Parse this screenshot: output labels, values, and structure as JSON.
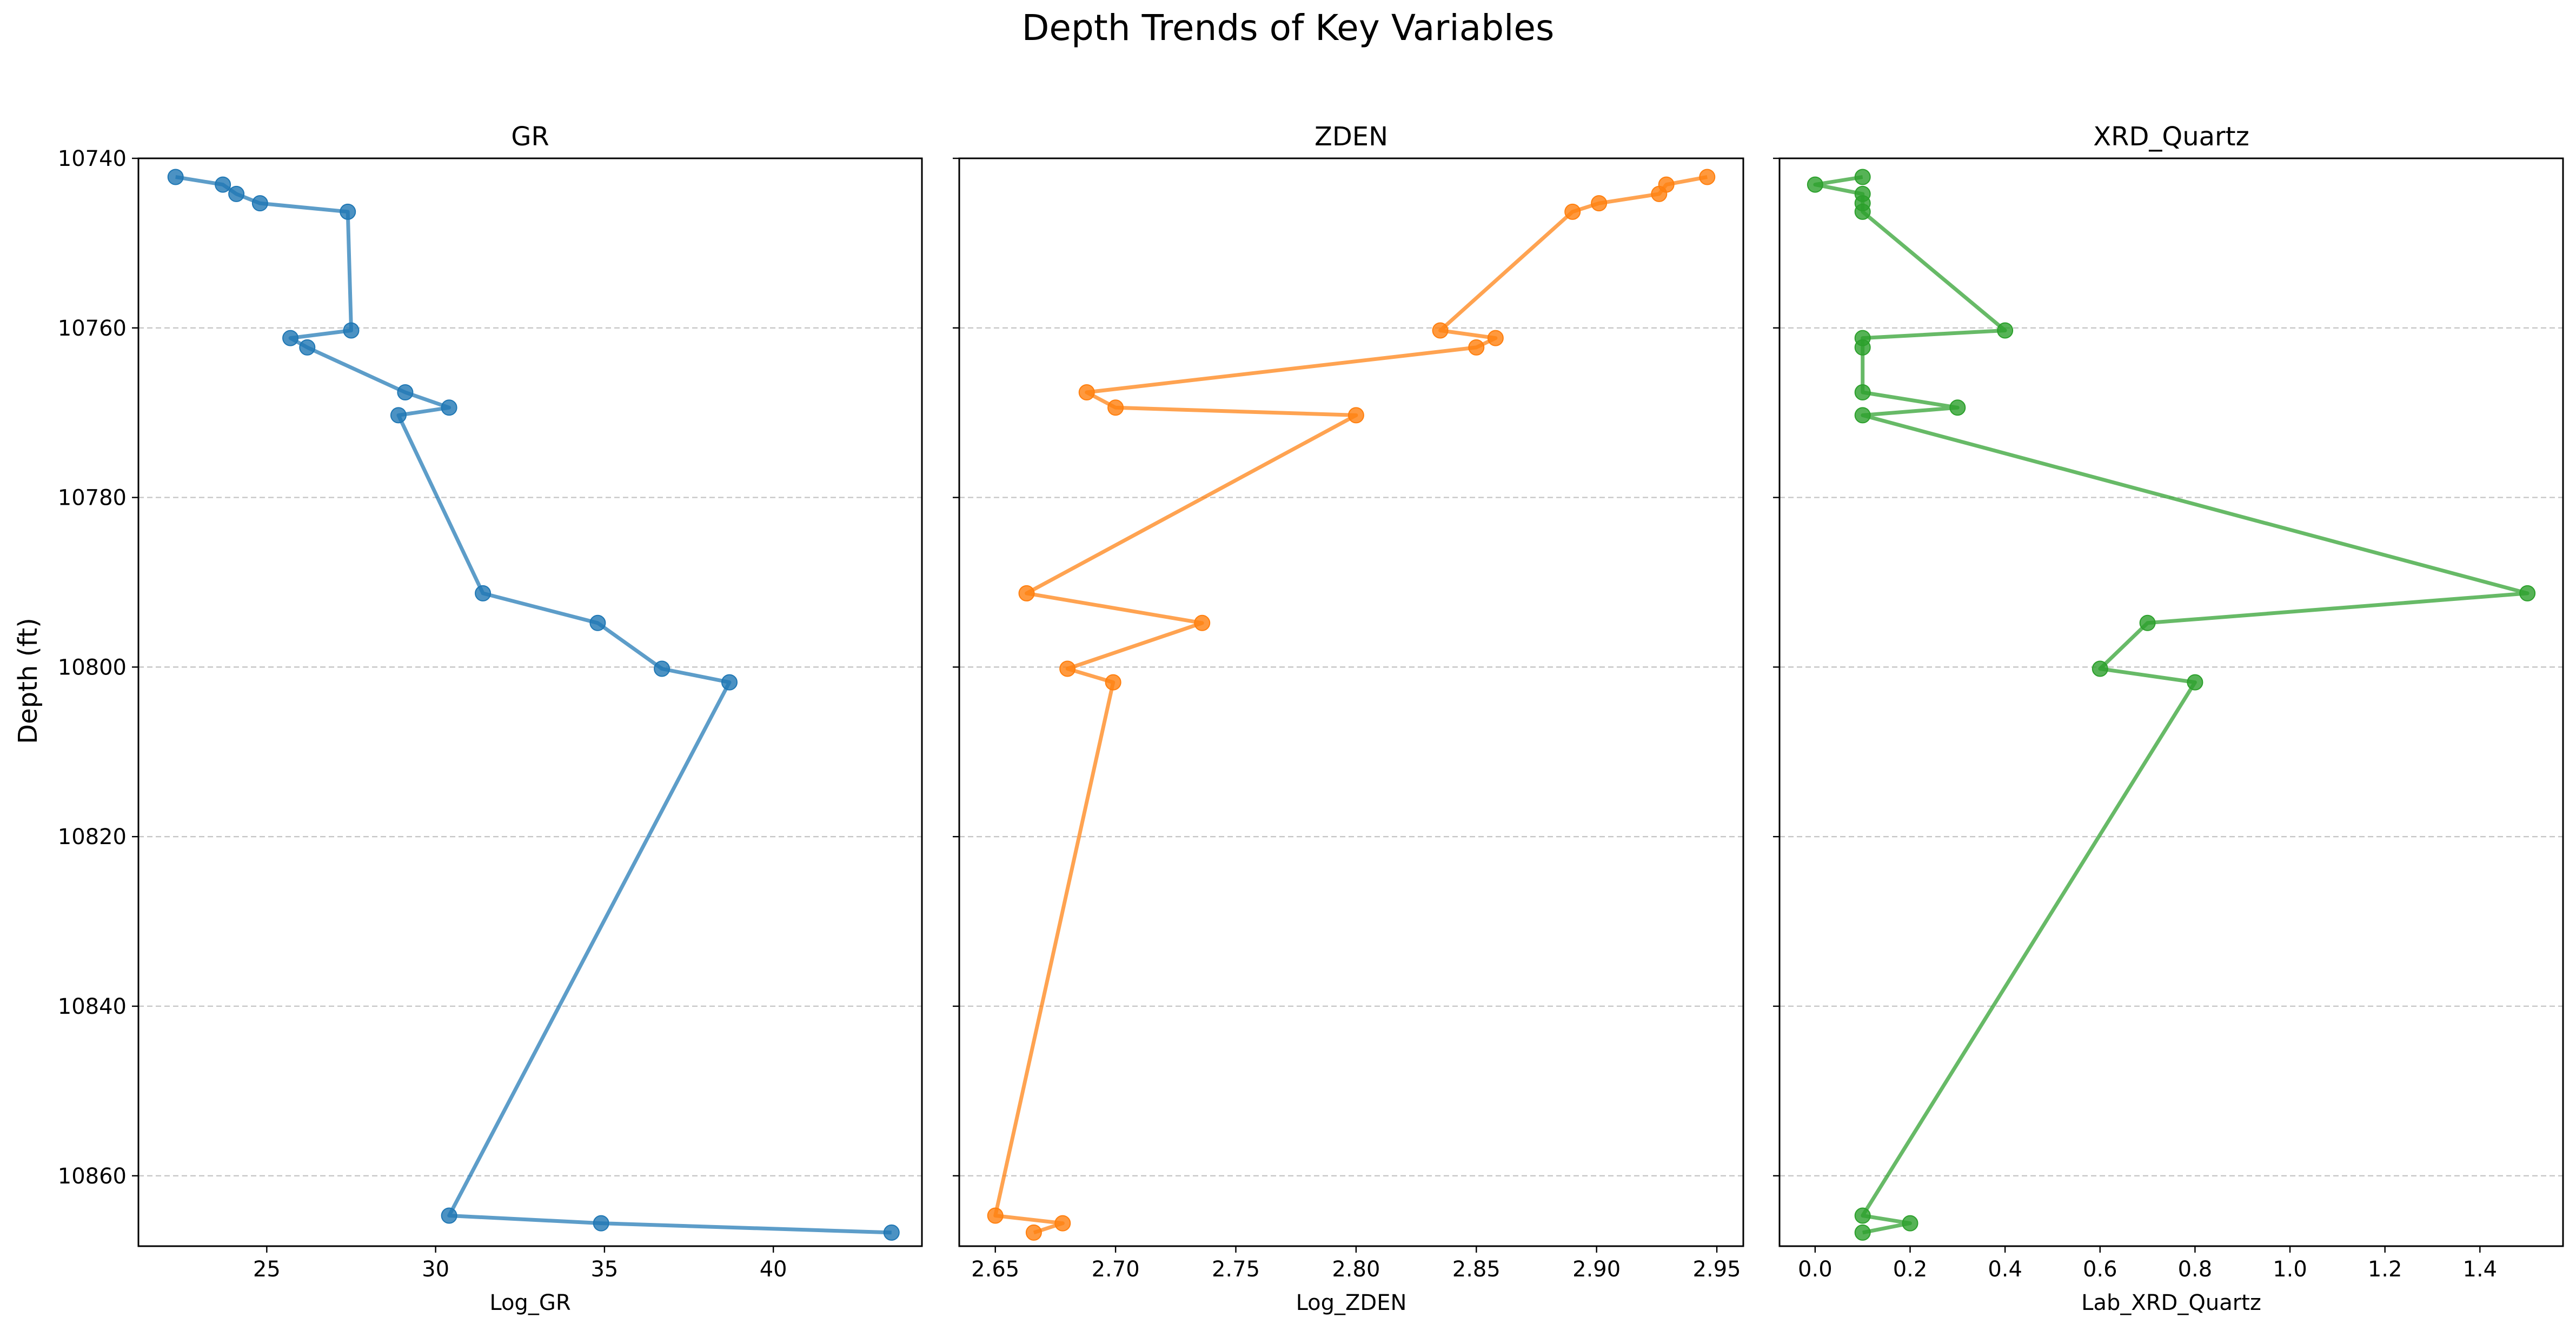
{
  "figure": {
    "suptitle": "Depth Trends of Key Variables",
    "shared_ylabel": "Depth (ft)"
  },
  "chart_data": [
    {
      "type": "line",
      "title": "GR",
      "xlabel": "Log_GR",
      "ylabel": "Depth (ft)",
      "color": "#1f77b4",
      "xlim": [
        21.2,
        44.4
      ],
      "ylim": [
        10868.3,
        10740.0
      ],
      "y_inverted": true,
      "grid": "y-dashed",
      "x_ticks": [
        25,
        30,
        35,
        40
      ],
      "x_tick_labels": [
        "25",
        "30",
        "35",
        "40"
      ],
      "y_ticks": [
        10740,
        10760,
        10780,
        10800,
        10820,
        10840,
        10860
      ],
      "y_tick_labels": [
        "10740",
        "10760",
        "10780",
        "10800",
        "10820",
        "10840",
        "10860"
      ],
      "points": [
        {
          "x": 22.3,
          "y": 10742.2
        },
        {
          "x": 23.7,
          "y": 10743.1
        },
        {
          "x": 24.1,
          "y": 10744.2
        },
        {
          "x": 24.8,
          "y": 10745.3
        },
        {
          "x": 27.4,
          "y": 10746.3
        },
        {
          "x": 27.5,
          "y": 10760.3
        },
        {
          "x": 25.7,
          "y": 10761.2
        },
        {
          "x": 26.2,
          "y": 10762.3
        },
        {
          "x": 29.1,
          "y": 10767.6
        },
        {
          "x": 30.4,
          "y": 10769.4
        },
        {
          "x": 28.9,
          "y": 10770.3
        },
        {
          "x": 31.4,
          "y": 10791.3
        },
        {
          "x": 34.8,
          "y": 10794.8
        },
        {
          "x": 36.7,
          "y": 10800.2
        },
        {
          "x": 38.7,
          "y": 10801.8
        },
        {
          "x": 30.4,
          "y": 10864.7
        },
        {
          "x": 34.9,
          "y": 10865.6
        },
        {
          "x": 43.5,
          "y": 10866.7
        }
      ]
    },
    {
      "type": "line",
      "title": "ZDEN",
      "xlabel": "Log_ZDEN",
      "color": "#ff7f0e",
      "xlim": [
        2.635,
        2.961
      ],
      "ylim": [
        10868.3,
        10740.0
      ],
      "y_inverted": true,
      "grid": "y-dashed",
      "x_ticks": [
        2.65,
        2.7,
        2.75,
        2.8,
        2.85,
        2.9,
        2.95
      ],
      "x_tick_labels": [
        "2.65",
        "2.70",
        "2.75",
        "2.80",
        "2.85",
        "2.90",
        "2.95"
      ],
      "points": [
        {
          "x": 2.946,
          "y": 10742.2
        },
        {
          "x": 2.929,
          "y": 10743.1
        },
        {
          "x": 2.926,
          "y": 10744.2
        },
        {
          "x": 2.901,
          "y": 10745.3
        },
        {
          "x": 2.89,
          "y": 10746.3
        },
        {
          "x": 2.835,
          "y": 10760.3
        },
        {
          "x": 2.858,
          "y": 10761.2
        },
        {
          "x": 2.85,
          "y": 10762.3
        },
        {
          "x": 2.688,
          "y": 10767.6
        },
        {
          "x": 2.7,
          "y": 10769.4
        },
        {
          "x": 2.8,
          "y": 10770.3
        },
        {
          "x": 2.663,
          "y": 10791.3
        },
        {
          "x": 2.736,
          "y": 10794.8
        },
        {
          "x": 2.68,
          "y": 10800.2
        },
        {
          "x": 2.699,
          "y": 10801.8
        },
        {
          "x": 2.65,
          "y": 10864.7
        },
        {
          "x": 2.678,
          "y": 10865.6
        },
        {
          "x": 2.666,
          "y": 10866.7
        }
      ]
    },
    {
      "type": "line",
      "title": "XRD_Quartz",
      "xlabel": "Lab_XRD_Quartz",
      "color": "#2ca02c",
      "xlim": [
        -0.075,
        1.575
      ],
      "ylim": [
        10868.3,
        10740.0
      ],
      "y_inverted": true,
      "grid": "y-dashed",
      "x_ticks": [
        0.0,
        0.2,
        0.4,
        0.6,
        0.8,
        1.0,
        1.2,
        1.4
      ],
      "x_tick_labels": [
        "0.0",
        "0.2",
        "0.4",
        "0.6",
        "0.8",
        "1.0",
        "1.2",
        "1.4"
      ],
      "points": [
        {
          "x": 0.1,
          "y": 10742.2
        },
        {
          "x": 0.0,
          "y": 10743.1
        },
        {
          "x": 0.1,
          "y": 10744.2
        },
        {
          "x": 0.1,
          "y": 10745.3
        },
        {
          "x": 0.1,
          "y": 10746.3
        },
        {
          "x": 0.4,
          "y": 10760.3
        },
        {
          "x": 0.1,
          "y": 10761.2
        },
        {
          "x": 0.1,
          "y": 10762.3
        },
        {
          "x": 0.1,
          "y": 10767.6
        },
        {
          "x": 0.3,
          "y": 10769.4
        },
        {
          "x": 0.1,
          "y": 10770.3
        },
        {
          "x": 1.5,
          "y": 10791.3
        },
        {
          "x": 0.7,
          "y": 10794.8
        },
        {
          "x": 0.6,
          "y": 10800.2
        },
        {
          "x": 0.8,
          "y": 10801.8
        },
        {
          "x": 0.1,
          "y": 10864.7
        },
        {
          "x": 0.2,
          "y": 10865.6
        },
        {
          "x": 0.1,
          "y": 10866.7
        }
      ]
    }
  ]
}
